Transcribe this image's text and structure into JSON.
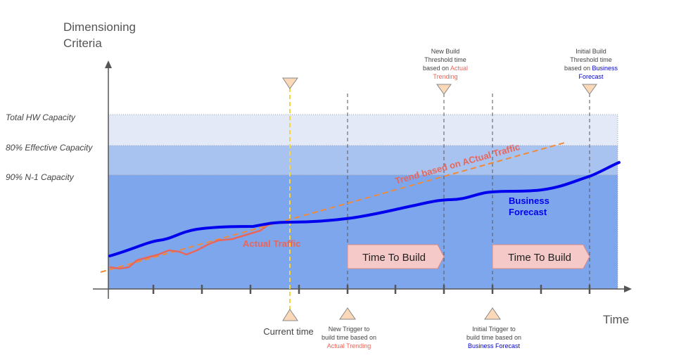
{
  "title_lines": [
    "Dimensioning",
    "Criteria"
  ],
  "x_axis_label": "Time",
  "bands": [
    {
      "label": "Total HW Capacity",
      "color": "#e3e9f7"
    },
    {
      "label": "80% Effective Capacity",
      "color": "#a9c3f1"
    },
    {
      "label": "90% N-1 Capacity",
      "color": "#7ea6ec"
    }
  ],
  "series": {
    "actual": {
      "label": "Actual Traffic",
      "color": "#e8665a"
    },
    "forecast": {
      "label_lines": [
        "Business",
        "Forecast"
      ],
      "color": "#0000ee"
    },
    "trend": {
      "label": "Trend based on ACtual Traffic",
      "color": "#ef8a3a"
    }
  },
  "build_boxes": [
    {
      "label": "Time To Build"
    },
    {
      "label": "Time To Build"
    }
  ],
  "current_time_label": "Current time",
  "annotations": {
    "new_build": {
      "lines": [
        "New Build",
        "Threshold time",
        "based on "
      ],
      "highlight": [
        "Actual",
        "Trending"
      ],
      "highlight_color": "#e8665a"
    },
    "initial_build": {
      "lines": [
        "Initial Build",
        "Threshold time",
        "based on "
      ],
      "highlight": [
        "Business",
        "Forecast"
      ],
      "highlight_color": "#0000cc"
    },
    "new_trigger": {
      "lines": [
        "New Trigger to",
        "build time based on"
      ],
      "highlight": "Actual Trending",
      "highlight_color": "#e8665a"
    },
    "initial_trigger": {
      "lines": [
        "Initial Trigger to",
        "build time based on"
      ],
      "highlight": "Business Forecast",
      "highlight_color": "#0000cc"
    }
  },
  "colors": {
    "axis": "#555555",
    "marker_fill": "#fbd9b8",
    "marker_stroke": "#888888",
    "current_line": "#f5d447",
    "build_fill": "#f5c9c7",
    "build_stroke": "#d98a86"
  }
}
